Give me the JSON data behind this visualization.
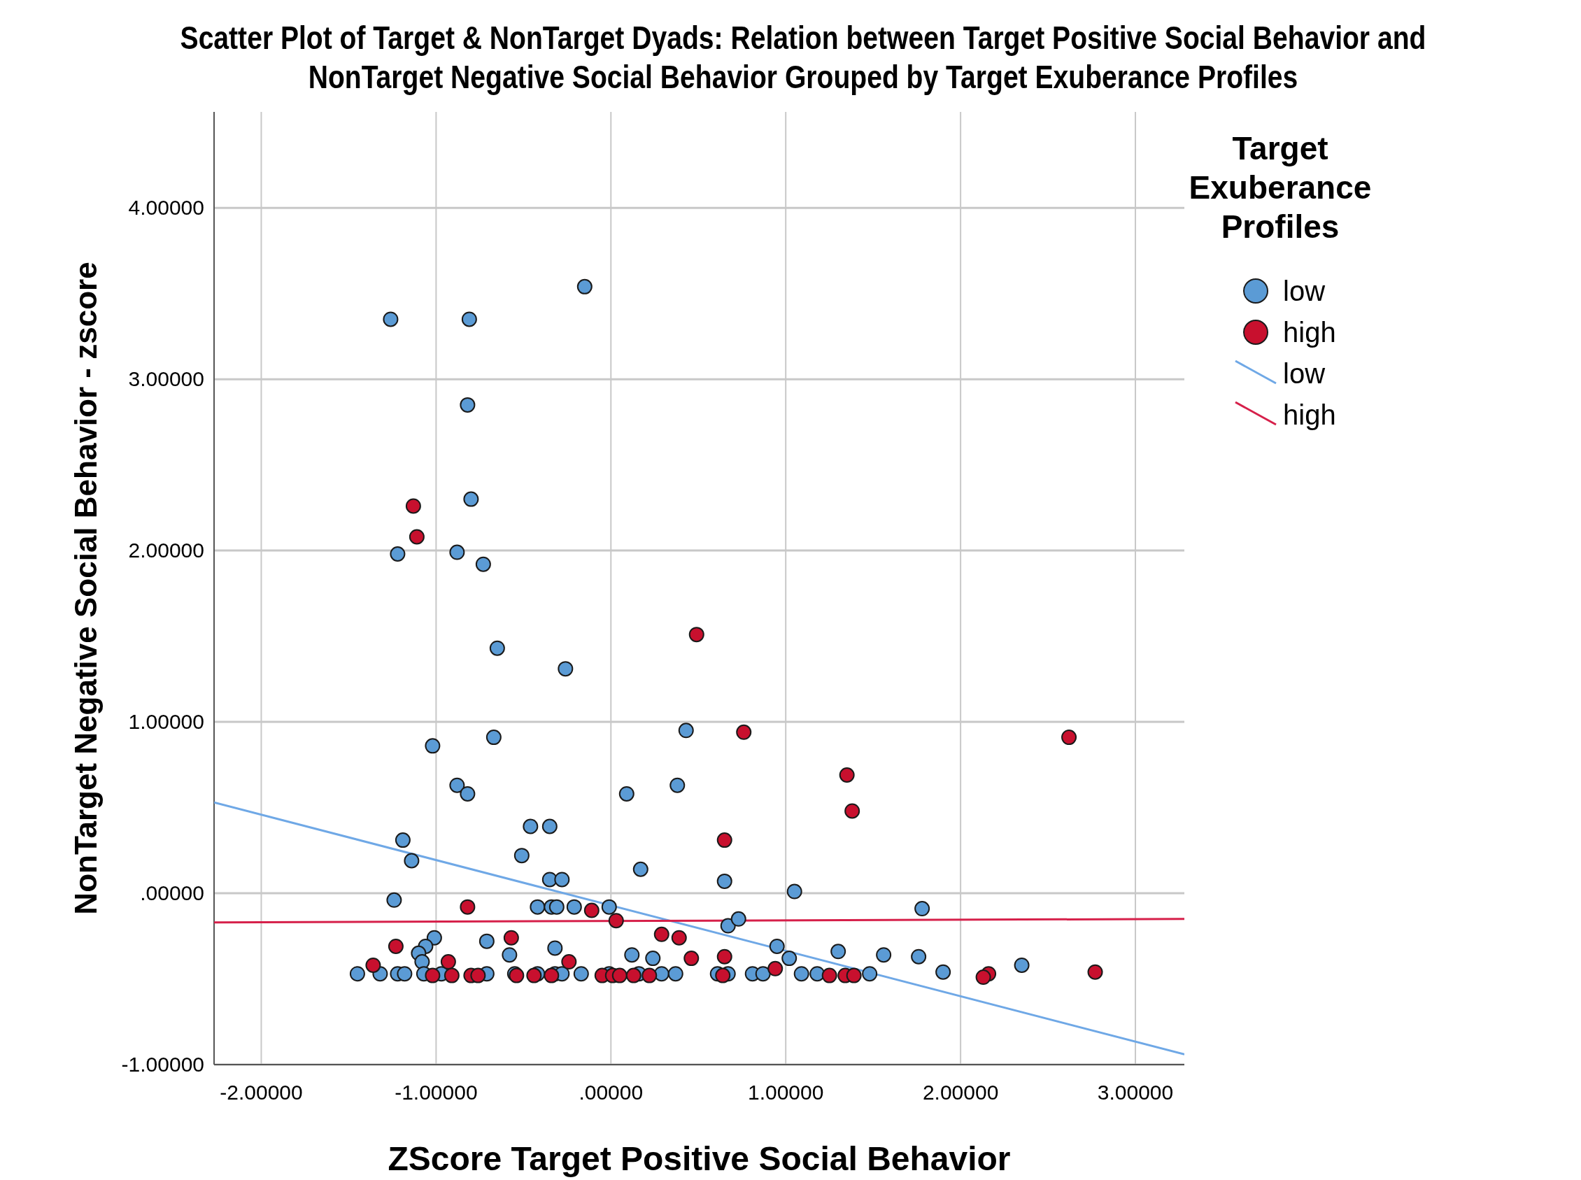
{
  "chart_data": {
    "type": "scatter",
    "title": "Scatter Plot of Target & NonTarget Dyads: Relation between Target Positive Social Behavior and NonTarget Negative Social Behavior Grouped by Target Exuberance Profiles",
    "xlabel": "ZScore Target Positive Social Behavior",
    "ylabel": "NonTarget Negative Social Behavior - zscore",
    "legend_title": "Target Exuberance Profiles",
    "legend": "right",
    "grid": true,
    "xlim": [
      -2.27,
      3.28
    ],
    "ylim": [
      -1,
      4.56
    ],
    "xticks": [
      {
        "value": -2,
        "label": "-2.00000"
      },
      {
        "value": -1,
        "label": "-1.00000"
      },
      {
        "value": 0,
        "label": ".00000"
      },
      {
        "value": 1,
        "label": "1.00000"
      },
      {
        "value": 2,
        "label": "2.00000"
      },
      {
        "value": 3,
        "label": "3.00000"
      }
    ],
    "yticks": [
      {
        "value": -1,
        "label": "-1.00000"
      },
      {
        "value": 0,
        "label": ".00000"
      },
      {
        "value": 1,
        "label": "1.00000"
      },
      {
        "value": 2,
        "label": "2.00000"
      },
      {
        "value": 3,
        "label": "3.00000"
      },
      {
        "value": 4,
        "label": "4.00000"
      }
    ],
    "series": [
      {
        "name": "low",
        "color": "#5b9bd5",
        "x": [
          -1.26,
          -0.81,
          -0.15,
          -0.82,
          -0.8,
          -1.22,
          -0.88,
          -0.73,
          -0.65,
          -0.26,
          0.43,
          -0.67,
          -1.02,
          -0.88,
          -0.82,
          0.09,
          0.38,
          -0.46,
          -0.35,
          -1.19,
          -1.14,
          -0.51,
          0.17,
          -0.35,
          -0.28,
          0.65,
          -1.24,
          1.05,
          1.78,
          -0.42,
          -0.34,
          -0.31,
          -0.21,
          -0.01,
          0.67,
          0.73,
          -1.01,
          -1.06,
          -1.1,
          -0.71,
          -0.58,
          -0.32,
          0.95,
          1.3,
          1.56,
          1.76,
          2.35,
          1.9,
          0.12,
          0.24,
          1.02,
          -1.08,
          -1.45,
          -1.32,
          -1.22,
          -1.18,
          -1.07,
          -0.97,
          -0.71,
          -0.55,
          -0.42,
          -0.32,
          -0.28,
          -0.17,
          -0.01,
          0.16,
          0.29,
          0.37,
          0.61,
          0.67,
          0.81,
          0.87,
          1.09,
          1.18,
          1.48
        ],
        "values": [
          3.35,
          3.35,
          3.54,
          2.85,
          2.3,
          1.98,
          1.99,
          1.92,
          1.43,
          1.31,
          0.95,
          0.91,
          0.86,
          0.63,
          0.58,
          0.58,
          0.63,
          0.39,
          0.39,
          0.31,
          0.19,
          0.22,
          0.14,
          0.08,
          0.08,
          0.07,
          -0.04,
          0.01,
          -0.09,
          -0.08,
          -0.08,
          -0.08,
          -0.08,
          -0.08,
          -0.19,
          -0.15,
          -0.26,
          -0.31,
          -0.35,
          -0.28,
          -0.36,
          -0.32,
          -0.31,
          -0.34,
          -0.36,
          -0.37,
          -0.42,
          -0.46,
          -0.36,
          -0.38,
          -0.38,
          -0.4,
          -0.47,
          -0.47,
          -0.47,
          -0.47,
          -0.47,
          -0.47,
          -0.47,
          -0.47,
          -0.47,
          -0.47,
          -0.47,
          -0.47,
          -0.47,
          -0.47,
          -0.47,
          -0.47,
          -0.47,
          -0.47,
          -0.47,
          -0.47,
          -0.47,
          -0.47,
          -0.47
        ]
      },
      {
        "name": "high",
        "color": "#c8102e",
        "x": [
          -1.13,
          -1.11,
          0.49,
          0.76,
          2.62,
          1.35,
          1.38,
          0.65,
          -0.82,
          -0.11,
          0.03,
          0.29,
          0.39,
          -0.57,
          -1.23,
          0.46,
          0.65,
          0.94,
          -1.36,
          -0.93,
          -0.24,
          2.77,
          2.16,
          2.13,
          -1.02,
          -0.91,
          -0.8,
          -0.76,
          -0.54,
          -0.44,
          -0.34,
          -0.05,
          0.01,
          0.05,
          0.13,
          0.22,
          0.64,
          1.25,
          1.34,
          1.39
        ],
        "values": [
          2.26,
          2.08,
          1.51,
          0.94,
          0.91,
          0.69,
          0.48,
          0.31,
          -0.08,
          -0.1,
          -0.16,
          -0.24,
          -0.26,
          -0.26,
          -0.31,
          -0.38,
          -0.37,
          -0.44,
          -0.42,
          -0.4,
          -0.4,
          -0.46,
          -0.47,
          -0.49,
          -0.48,
          -0.48,
          -0.48,
          -0.48,
          -0.48,
          -0.48,
          -0.48,
          -0.48,
          -0.48,
          -0.48,
          -0.48,
          -0.48,
          -0.48,
          -0.48,
          -0.48,
          -0.48
        ]
      },
      {
        "name": "low",
        "type": "line",
        "color": "#6fa8e6",
        "x": [
          -2.27,
          3.28
        ],
        "values": [
          0.53,
          -0.94
        ]
      },
      {
        "name": "high",
        "type": "line",
        "color": "#d6204a",
        "x": [
          -2.27,
          3.28
        ],
        "values": [
          -0.17,
          -0.15
        ]
      }
    ]
  }
}
